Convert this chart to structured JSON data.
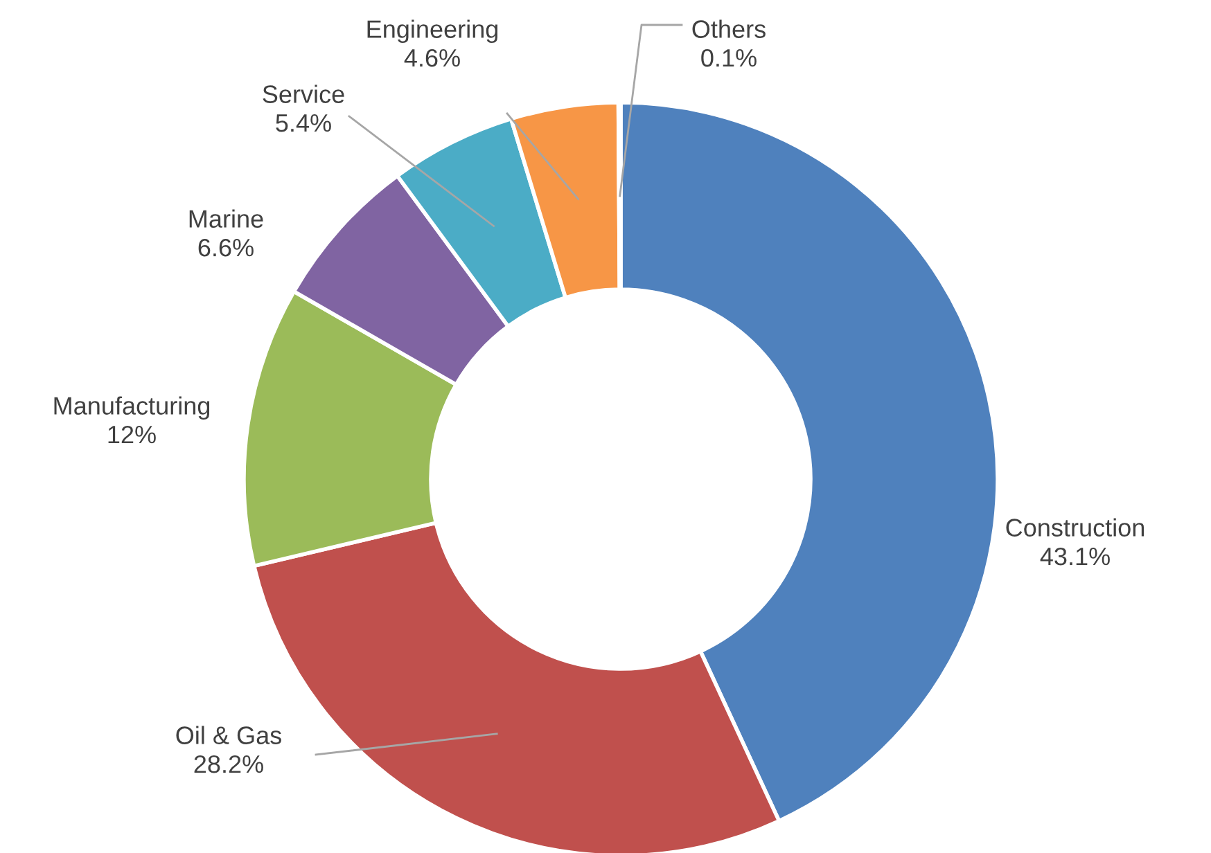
{
  "chart_data": {
    "type": "donut",
    "categories": [
      "Construction",
      "Oil & Gas",
      "Manufacturing",
      "Marine",
      "Service",
      "Engineering",
      "Others"
    ],
    "values": [
      43.1,
      28.2,
      12,
      6.6,
      5.4,
      4.6,
      0.1
    ],
    "colors": [
      "#4f81bd",
      "#c0504d",
      "#9bbb59",
      "#8064a2",
      "#4bacc6",
      "#f79646",
      "#2c4d75"
    ],
    "value_labels": [
      "43.1%",
      "28.2%",
      "12%",
      "6.6%",
      "5.4%",
      "4.6%",
      "0.1%"
    ],
    "legend": false
  }
}
